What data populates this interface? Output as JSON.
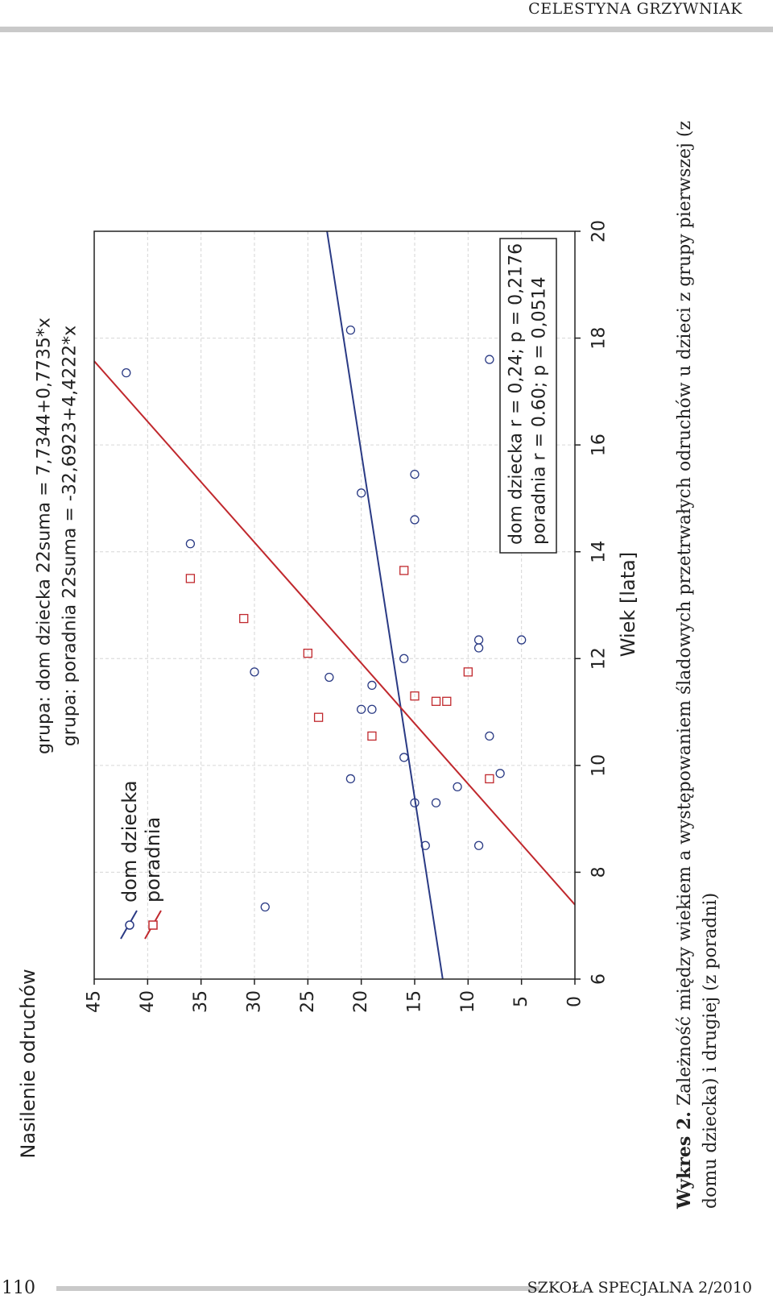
{
  "header": {
    "author": "CELESTYNA GRZYWNIAK"
  },
  "footer": {
    "page_number": "110",
    "journal": "SZKOŁA SPECJALNA 2/2010"
  },
  "caption": {
    "label": "Wykres 2.",
    "text": "Zależność między wiekiem a występowaniem śladowych przetrwałych odruchów u dzieci z grupy pierwszej (z domu dziecka) i drugiej (z poradni)"
  },
  "chart_data": {
    "type": "scatter",
    "orientation": "rotated-90-ccw",
    "title_lines": [
      "grupa: dom dziecka 22suma = 7,7344+0,7735*x",
      "grupa: poradnia 22suma = -32,6923+4,4222*x"
    ],
    "xlabel": "Wiek [lata]",
    "ylabel": "Nasilenie odruchów",
    "xlim": [
      6,
      20
    ],
    "ylim": [
      0,
      45
    ],
    "xticks": [
      "6",
      "8",
      "10",
      "12",
      "14",
      "16",
      "18",
      "20"
    ],
    "yticks": [
      "0",
      "5",
      "10",
      "15",
      "20",
      "25",
      "30",
      "35",
      "40",
      "45"
    ],
    "grid": true,
    "legend": {
      "placement": "top-left",
      "entries": [
        "dom dziecka",
        "poradnia"
      ]
    },
    "stats_box": {
      "placement": "bottom-right",
      "lines": [
        "dom dziecka r = 0,24; p = 0,2176",
        "poradnia r = 0.60; p = 0,0514"
      ]
    },
    "series": [
      {
        "name": "dom dziecka",
        "marker": "circle",
        "color": "#2a3a84",
        "intercept": 7.7344,
        "slope": 0.7735,
        "points": [
          [
            7.35,
            29
          ],
          [
            8.5,
            14
          ],
          [
            8.5,
            9
          ],
          [
            9.3,
            15
          ],
          [
            9.3,
            13
          ],
          [
            9.6,
            11
          ],
          [
            9.75,
            21
          ],
          [
            9.85,
            7
          ],
          [
            10.15,
            16
          ],
          [
            10.55,
            8
          ],
          [
            11.05,
            20
          ],
          [
            11.05,
            19
          ],
          [
            11.5,
            19
          ],
          [
            11.65,
            23
          ],
          [
            11.75,
            30
          ],
          [
            12,
            16
          ],
          [
            12.2,
            9
          ],
          [
            12.35,
            9
          ],
          [
            12.35,
            5
          ],
          [
            14.15,
            36
          ],
          [
            14.6,
            15
          ],
          [
            15.1,
            20
          ],
          [
            15.45,
            15
          ],
          [
            17.6,
            8
          ],
          [
            17.35,
            42
          ],
          [
            18.15,
            21
          ]
        ]
      },
      {
        "name": "poradnia",
        "marker": "square",
        "color": "#c0282d",
        "intercept": -32.6923,
        "slope": 4.4222,
        "points": [
          [
            9.75,
            8
          ],
          [
            10.55,
            19
          ],
          [
            10.9,
            24
          ],
          [
            11.2,
            13
          ],
          [
            11.2,
            12
          ],
          [
            11.3,
            15
          ],
          [
            11.75,
            10
          ],
          [
            12.1,
            25
          ],
          [
            12.75,
            31
          ],
          [
            13.5,
            36
          ],
          [
            13.65,
            16
          ]
        ]
      }
    ]
  }
}
